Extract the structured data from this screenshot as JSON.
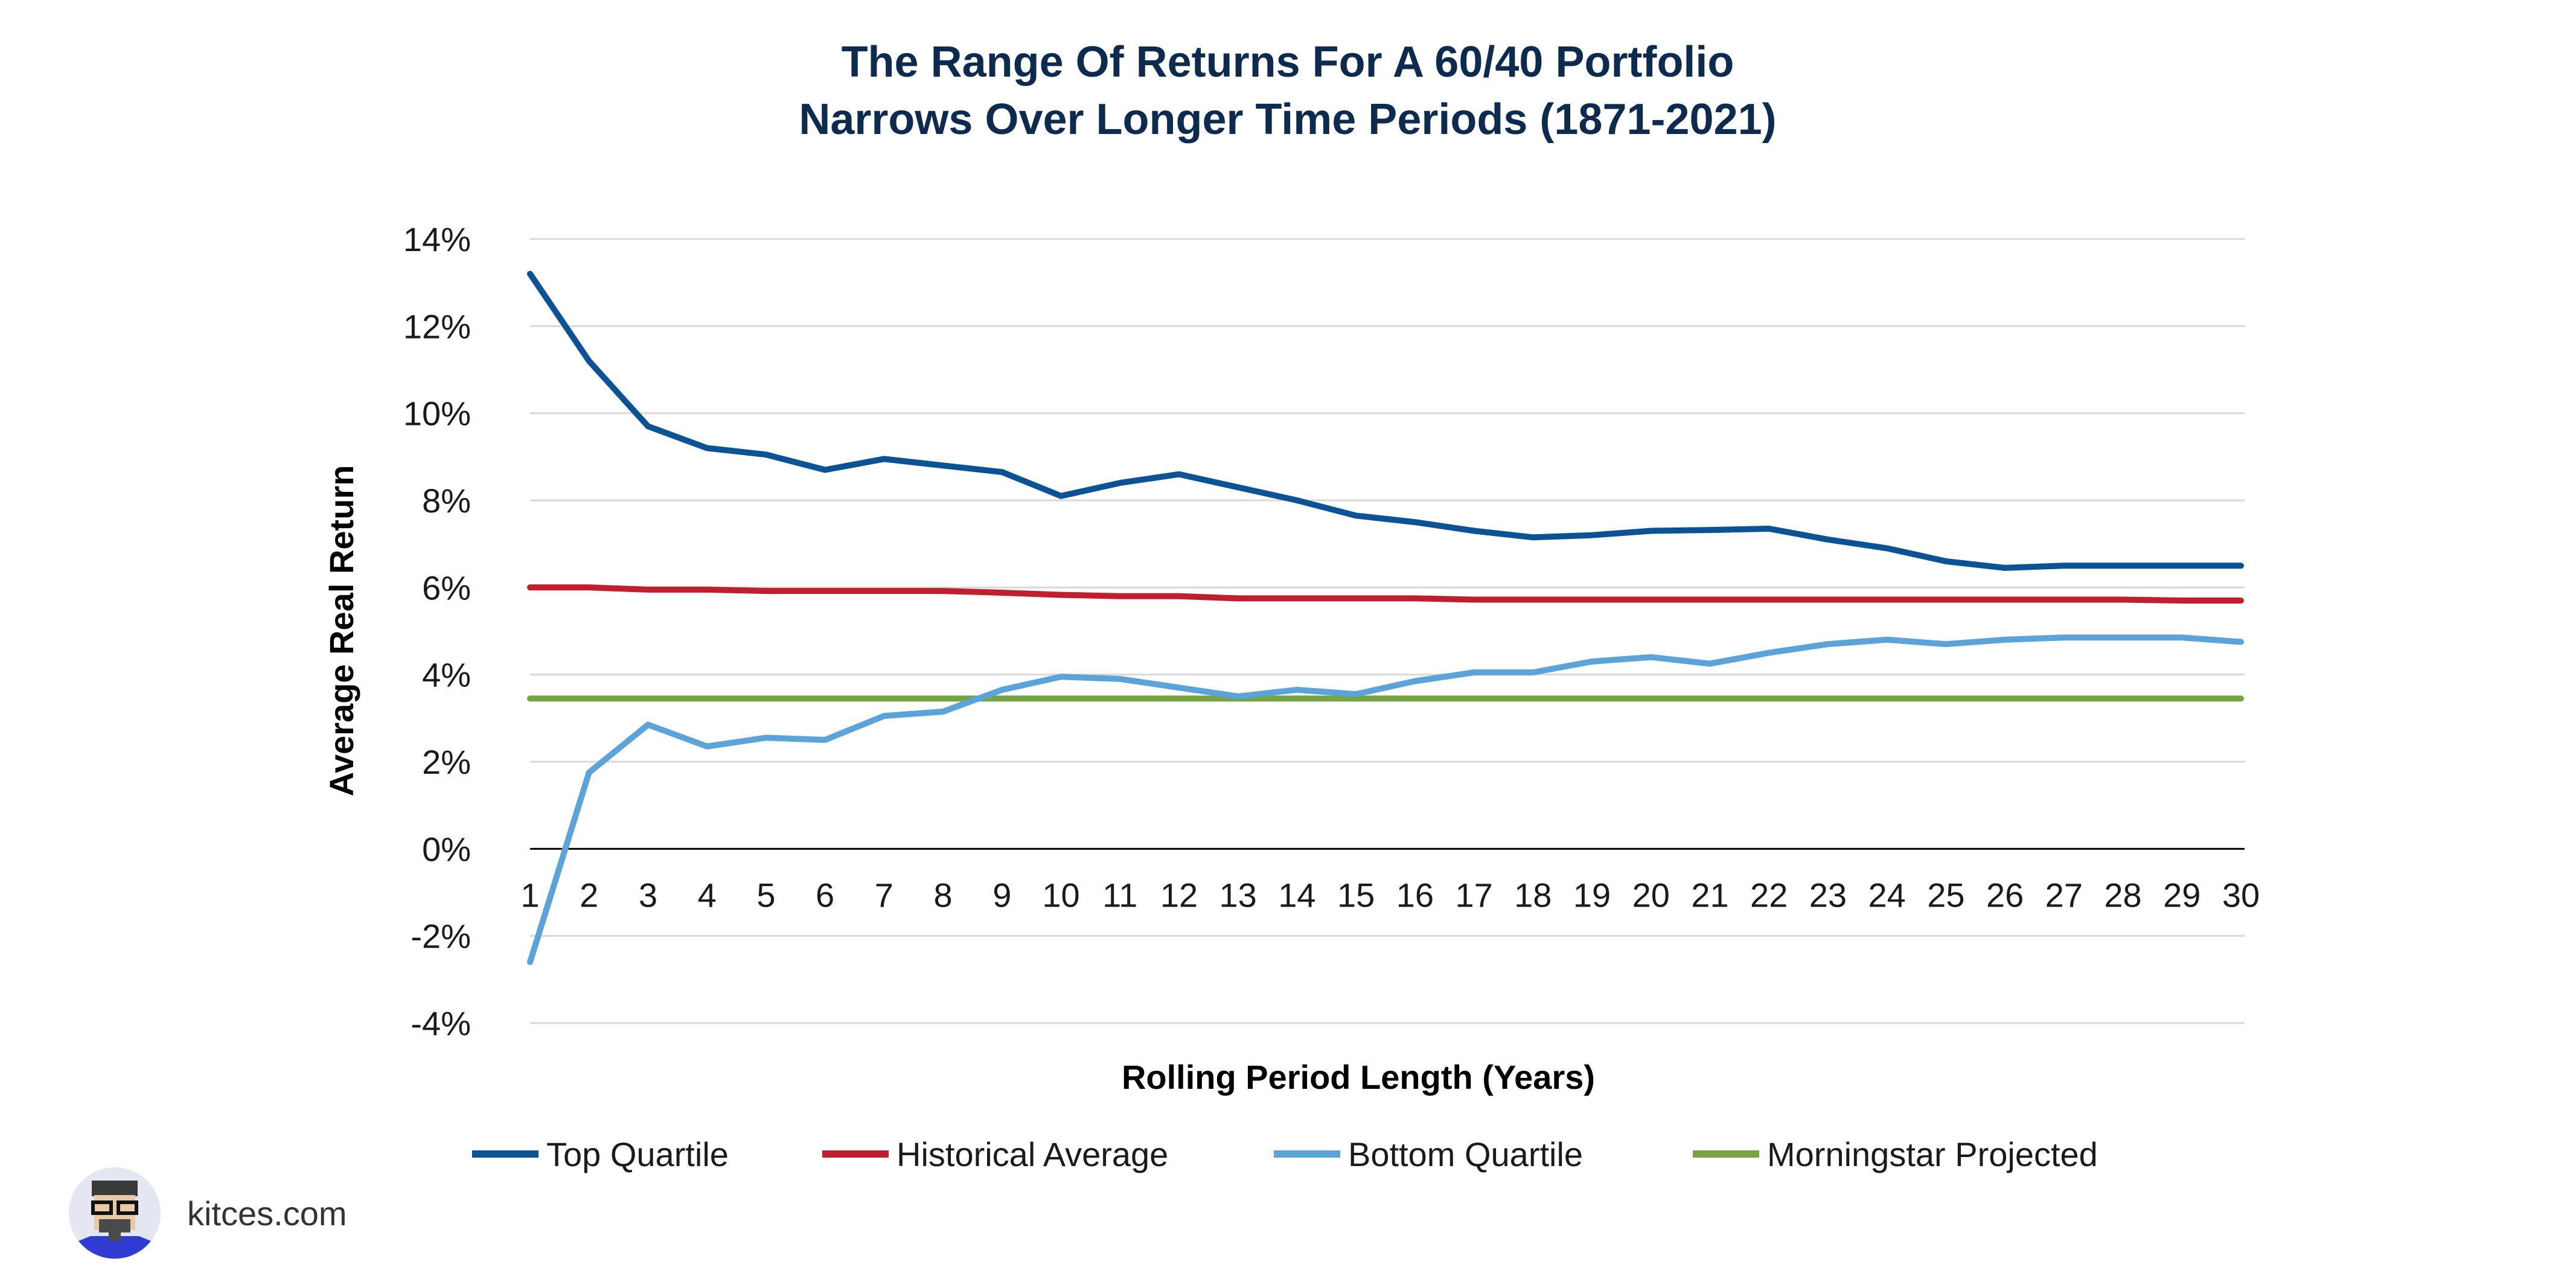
{
  "chart_data": {
    "type": "line",
    "title": [
      "The Range Of Returns For A 60/40 Portfolio",
      "Narrows Over Longer Time Periods (1871-2021)"
    ],
    "xlabel": "Rolling Period Length (Years)",
    "ylabel": "Average Real Return",
    "x": [
      1,
      2,
      3,
      4,
      5,
      6,
      7,
      8,
      9,
      10,
      11,
      12,
      13,
      14,
      15,
      16,
      17,
      18,
      19,
      20,
      21,
      22,
      23,
      24,
      25,
      26,
      27,
      28,
      29,
      30
    ],
    "ylim": [
      -4,
      14
    ],
    "yticks": [
      -4,
      -2,
      0,
      2,
      4,
      6,
      8,
      10,
      12,
      14
    ],
    "ytick_labels": [
      "-4%",
      "-2%",
      "0%",
      "2%",
      "4%",
      "6%",
      "8%",
      "10%",
      "12%",
      "14%"
    ],
    "grid": true,
    "legend_position": "bottom",
    "series": [
      {
        "name": "Top Quartile",
        "color": "#0b5394",
        "values": [
          13.2,
          11.2,
          9.7,
          9.2,
          9.05,
          8.7,
          8.95,
          8.8,
          8.65,
          8.1,
          8.4,
          8.6,
          8.3,
          8.0,
          7.65,
          7.5,
          7.3,
          7.15,
          7.2,
          7.3,
          7.32,
          7.35,
          7.1,
          6.9,
          6.6,
          6.45,
          6.5,
          6.5,
          6.5,
          6.5
        ]
      },
      {
        "name": "Historical Average",
        "color": "#c0202e",
        "values": [
          6.0,
          6.0,
          5.95,
          5.95,
          5.92,
          5.92,
          5.92,
          5.92,
          5.88,
          5.83,
          5.8,
          5.8,
          5.75,
          5.75,
          5.75,
          5.75,
          5.72,
          5.72,
          5.72,
          5.72,
          5.72,
          5.72,
          5.72,
          5.72,
          5.72,
          5.72,
          5.72,
          5.72,
          5.7,
          5.7
        ]
      },
      {
        "name": "Bottom Quartile",
        "color": "#5ba3d9",
        "values": [
          -2.6,
          1.75,
          2.85,
          2.35,
          2.55,
          2.5,
          3.05,
          3.15,
          3.65,
          3.95,
          3.9,
          3.7,
          3.5,
          3.65,
          3.55,
          3.85,
          4.05,
          4.05,
          4.3,
          4.4,
          4.25,
          4.5,
          4.7,
          4.8,
          4.7,
          4.8,
          4.85,
          4.85,
          4.85,
          4.75
        ]
      },
      {
        "name": "Morningstar Projected",
        "color": "#77a442",
        "values": [
          3.45,
          3.45,
          3.45,
          3.45,
          3.45,
          3.45,
          3.45,
          3.45,
          3.45,
          3.45,
          3.45,
          3.45,
          3.45,
          3.45,
          3.45,
          3.45,
          3.45,
          3.45,
          3.45,
          3.45,
          3.45,
          3.45,
          3.45,
          3.45,
          3.45,
          3.45,
          3.45,
          3.45,
          3.45,
          3.45
        ]
      }
    ]
  },
  "brand": {
    "text": "kitces.com",
    "logo_icon": "avatar-face-icon"
  }
}
